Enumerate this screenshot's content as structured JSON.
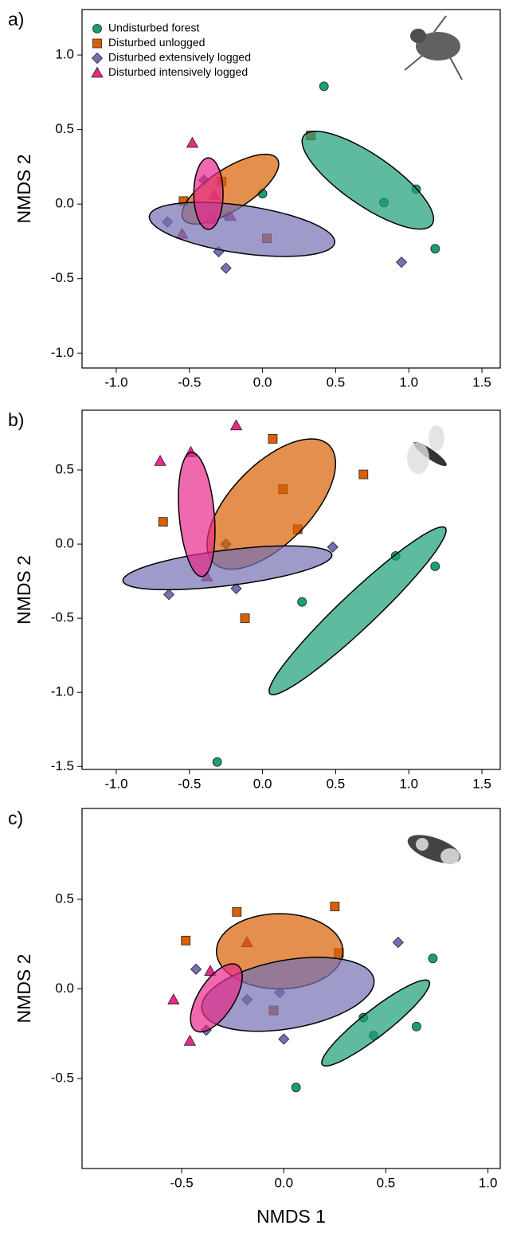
{
  "chart_data": [
    {
      "type": "scatter",
      "panel_label": "a)",
      "ylabel": "NMDS 2",
      "legend": "top-left",
      "xlim": [
        -1.234,
        1.625
      ],
      "ylim": [
        -1.1,
        1.305
      ],
      "xticks": [
        {
          "value": -1,
          "label": "-1.0"
        },
        -0.5,
        {
          "value": 0,
          "label": "0.0"
        },
        0.5,
        {
          "value": 1,
          "label": "1.0"
        },
        1.5
      ],
      "yticks": [
        {
          "value": -1,
          "label": "-1.0"
        },
        -0.5,
        {
          "value": 0,
          "label": "0.0"
        },
        0.5,
        {
          "value": 1,
          "label": "1.0"
        }
      ],
      "series": [
        {
          "name": "Undisturbed forest",
          "color": "#1b9e77",
          "marker": "circle",
          "x": [
            0.42,
            0.83,
            1.05,
            1.18,
            0.0
          ],
          "y": [
            0.79,
            0.01,
            0.1,
            -0.3,
            0.07
          ],
          "ellipse": {
            "cx": 0.72,
            "cy": 0.16,
            "a": 0.53,
            "b": 0.17,
            "angle": -34
          }
        },
        {
          "name": "Disturbed unlogged",
          "color": "#d95f02",
          "marker": "square",
          "x": [
            0.33,
            -0.54,
            0.03,
            -0.35,
            -0.28
          ],
          "y": [
            0.46,
            0.02,
            -0.23,
            -0.1,
            0.15
          ],
          "ellipse": {
            "cx": -0.22,
            "cy": 0.1,
            "a": 0.38,
            "b": 0.14,
            "angle": 32
          }
        },
        {
          "name": "Disturbed extensively logged",
          "color": "#7570b3",
          "marker": "diamond",
          "x": [
            -0.65,
            -0.4,
            -0.3,
            -0.25,
            0.95,
            -0.24
          ],
          "y": [
            -0.12,
            0.16,
            -0.32,
            -0.43,
            -0.39,
            -0.08
          ],
          "ellipse": {
            "cx": -0.14,
            "cy": -0.17,
            "a": 0.64,
            "b": 0.16,
            "angle": -8
          }
        },
        {
          "name": "Disturbed intensively logged",
          "color": "#e7298a",
          "marker": "triangle",
          "x": [
            -0.48,
            -0.55,
            -0.33,
            -0.22
          ],
          "y": [
            0.41,
            -0.2,
            0.06,
            -0.08
          ],
          "ellipse": {
            "cx": -0.37,
            "cy": 0.07,
            "a": 0.24,
            "b": 0.1,
            "angle": 90
          }
        }
      ]
    },
    {
      "type": "scatter",
      "panel_label": "b)",
      "ylabel": "NMDS 2",
      "xlim": [
        -1.234,
        1.625
      ],
      "ylim": [
        -1.52,
        0.903
      ],
      "xticks": [
        {
          "value": -1,
          "label": "-1.0"
        },
        -0.5,
        {
          "value": 0,
          "label": "0.0"
        },
        0.5,
        {
          "value": 1,
          "label": "1.0"
        },
        1.5
      ],
      "yticks": [
        -1.5,
        {
          "value": -1,
          "label": "-1.0"
        },
        -0.5,
        {
          "value": 0,
          "label": "0.0"
        },
        0.5
      ],
      "series": [
        {
          "color": "#1b9e77",
          "marker": "circle",
          "x": [
            0.27,
            0.91,
            1.18,
            -0.31
          ],
          "y": [
            -0.39,
            -0.08,
            -0.15,
            -1.47
          ],
          "ellipse": {
            "cx": 0.65,
            "cy": -0.45,
            "a": 0.82,
            "b": 0.12,
            "angle": 43
          }
        },
        {
          "color": "#d95f02",
          "marker": "square",
          "x": [
            -0.68,
            0.07,
            0.14,
            0.69,
            -0.12,
            0.24
          ],
          "y": [
            0.15,
            0.71,
            0.37,
            0.47,
            -0.5,
            0.1
          ],
          "ellipse": {
            "cx": 0.06,
            "cy": 0.27,
            "a": 0.56,
            "b": 0.27,
            "angle": 45
          }
        },
        {
          "color": "#7570b3",
          "marker": "diamond",
          "x": [
            -0.64,
            -0.18,
            0.48,
            -0.25
          ],
          "y": [
            -0.34,
            -0.3,
            -0.02,
            0.0
          ],
          "ellipse": {
            "cx": -0.24,
            "cy": -0.16,
            "a": 0.72,
            "b": 0.12,
            "angle": 7
          }
        },
        {
          "color": "#e7298a",
          "marker": "triangle",
          "x": [
            -0.7,
            -0.49,
            -0.18,
            -0.38
          ],
          "y": [
            0.56,
            0.62,
            0.8,
            -0.22
          ],
          "ellipse": {
            "cx": -0.45,
            "cy": 0.2,
            "a": 0.42,
            "b": 0.12,
            "angle": 95
          }
        }
      ]
    },
    {
      "type": "scatter",
      "panel_label": "c)",
      "ylabel": "NMDS 2",
      "xlabel": "NMDS 1",
      "xlim": [
        -0.988,
        1.06
      ],
      "ylim": [
        -1.002,
        1.007
      ],
      "xticks": [
        -0.5,
        {
          "value": 0,
          "label": "0.0"
        },
        0.5,
        {
          "value": 1,
          "label": "1.0"
        }
      ],
      "yticks": [
        -0.5,
        {
          "value": 0,
          "label": "0.0"
        },
        0.5
      ],
      "series": [
        {
          "color": "#1b9e77",
          "marker": "circle",
          "x": [
            0.06,
            0.39,
            0.44,
            0.65,
            0.73
          ],
          "y": [
            -0.55,
            -0.16,
            -0.26,
            -0.21,
            0.17
          ],
          "ellipse": {
            "cx": 0.45,
            "cy": -0.19,
            "a": 0.35,
            "b": 0.07,
            "angle": 42
          }
        },
        {
          "color": "#d95f02",
          "marker": "square",
          "x": [
            -0.48,
            -0.23,
            0.25,
            0.27,
            -0.05
          ],
          "y": [
            0.27,
            0.43,
            0.46,
            0.2,
            -0.12
          ],
          "ellipse": {
            "cx": -0.02,
            "cy": 0.21,
            "a": 0.31,
            "b": 0.21,
            "angle": 0
          }
        },
        {
          "color": "#7570b3",
          "marker": "diamond",
          "x": [
            -0.43,
            -0.38,
            -0.02,
            0.56,
            0.0,
            -0.18
          ],
          "y": [
            0.11,
            -0.23,
            -0.02,
            0.26,
            -0.28,
            -0.06
          ],
          "ellipse": {
            "cx": 0.02,
            "cy": -0.03,
            "a": 0.43,
            "b": 0.19,
            "angle": 12
          }
        },
        {
          "color": "#e7298a",
          "marker": "triangle",
          "x": [
            -0.54,
            -0.36,
            -0.46,
            -0.18
          ],
          "y": [
            -0.06,
            0.1,
            -0.29,
            0.26
          ],
          "ellipse": {
            "cx": -0.33,
            "cy": -0.05,
            "a": 0.21,
            "b": 0.09,
            "angle": 62
          }
        }
      ]
    }
  ]
}
